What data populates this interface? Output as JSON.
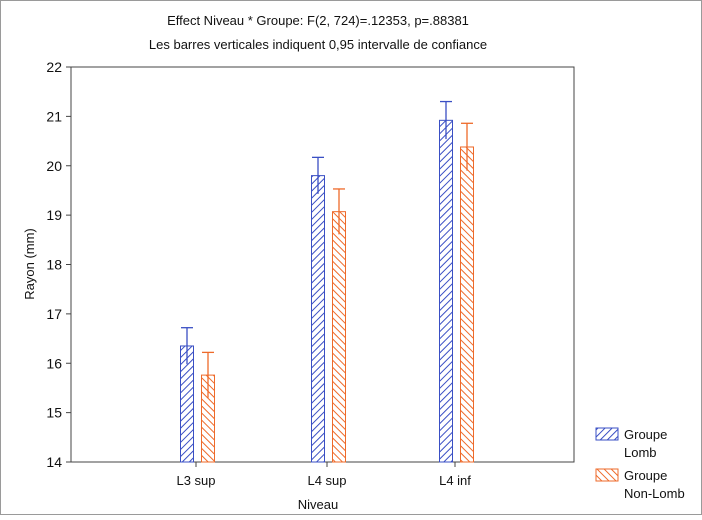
{
  "chart_data": {
    "type": "bar",
    "title": "Effect Niveau * Groupe: F(2, 724)=.12353, p=.88381",
    "subtitle": "Les barres verticales indiquent 0,95 intervalle de confiance",
    "xlabel": "Niveau",
    "ylabel": "Rayon (mm)",
    "ylim": [
      14,
      22
    ],
    "yticks": [
      "14",
      "15",
      "16",
      "17",
      "18",
      "19",
      "20",
      "21",
      "22"
    ],
    "categories": [
      "L3 sup",
      "L4 sup",
      "L4 inf"
    ],
    "series": [
      {
        "name": "Groupe Lomb",
        "legend_lines": [
          "Groupe",
          "Lomb"
        ],
        "color": "#3a4fc4",
        "values": [
          16.35,
          19.8,
          20.92
        ],
        "ci_upper": [
          16.72,
          20.17,
          21.3
        ]
      },
      {
        "name": "Groupe Non-Lomb",
        "legend_lines": [
          "Groupe",
          "Non-Lomb"
        ],
        "color": "#ee6a2a",
        "values": [
          15.76,
          19.07,
          20.38
        ],
        "ci_upper": [
          16.22,
          19.53,
          20.86
        ]
      }
    ],
    "grid": false,
    "legend_position": "bottom-right, outside plot"
  }
}
